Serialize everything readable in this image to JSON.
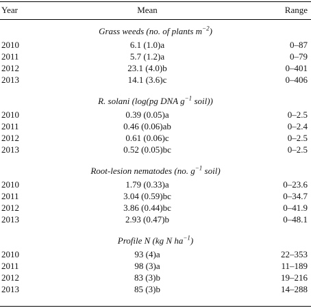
{
  "header": {
    "year": "Year",
    "mean": "Mean",
    "range": "Range"
  },
  "sections": [
    {
      "title_pre": "Grass weeds (no. of plants m",
      "title_sup": "−2",
      "title_post": ")",
      "rows": [
        {
          "year": "2010",
          "mean": "6.1 (1.0)a",
          "range": "0–87"
        },
        {
          "year": "2011",
          "mean": "5.7 (1.2)a",
          "range": "0–79"
        },
        {
          "year": "2012",
          "mean": "23.1 (4.0)b",
          "range": "0–401"
        },
        {
          "year": "2013",
          "mean": "14.1 (3.6)c",
          "range": "0–406"
        }
      ]
    },
    {
      "title_pre": "R. solani (log(pg DNA g",
      "title_sup": "−1",
      "title_post": " soil))",
      "rows": [
        {
          "year": "2010",
          "mean": "0.39 (0.05)a",
          "range": "0–2.5"
        },
        {
          "year": "2011",
          "mean": "0.46 (0.06)ab",
          "range": "0–2.4"
        },
        {
          "year": "2012",
          "mean": "0.61 (0.06)c",
          "range": "0–2.5"
        },
        {
          "year": "2013",
          "mean": "0.52 (0.05)bc",
          "range": "0–2.5"
        }
      ]
    },
    {
      "title_pre": "Root-lesion nematodes (no. g",
      "title_sup": "−1",
      "title_post": " soil)",
      "rows": [
        {
          "year": "2010",
          "mean": "1.79 (0.33)a",
          "range": "0–23.6"
        },
        {
          "year": "2011",
          "mean": "3.04 (0.59)bc",
          "range": "0–34.7"
        },
        {
          "year": "2012",
          "mean": "3.86 (0.44)bc",
          "range": "0–41.9"
        },
        {
          "year": "2013",
          "mean": "2.93 (0.47)b",
          "range": "0–48.1"
        }
      ]
    },
    {
      "title_pre": "Profile N (kg N ha",
      "title_sup": "−1",
      "title_post": ")",
      "rows": [
        {
          "year": "2010",
          "mean": "93 (4)a",
          "range": "22–353"
        },
        {
          "year": "2011",
          "mean": "98 (3)a",
          "range": "11–189"
        },
        {
          "year": "2012",
          "mean": "83 (3)b",
          "range": "19–216"
        },
        {
          "year": "2013",
          "mean": "85 (3)b",
          "range": "14–288"
        }
      ]
    }
  ]
}
